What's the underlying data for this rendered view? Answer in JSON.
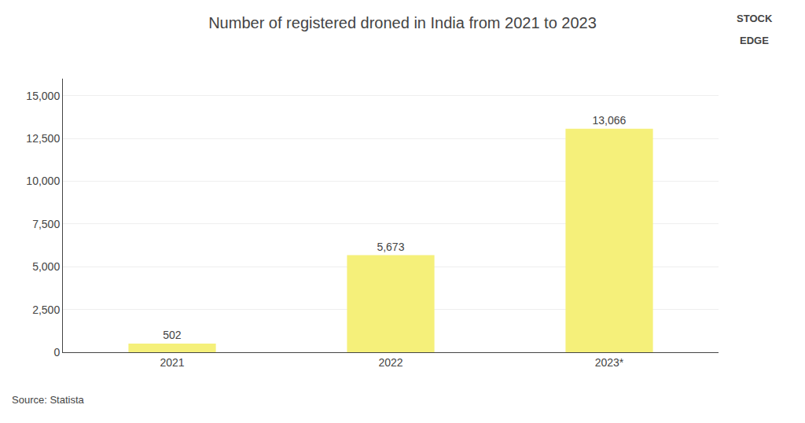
{
  "chart_data": {
    "type": "bar",
    "title": "Number of registered droned in India from 2021 to 2023",
    "categories": [
      "2021",
      "2022",
      "2023*"
    ],
    "values": [
      502,
      5673,
      13066
    ],
    "value_labels": [
      "502",
      "5,673",
      "13,066"
    ],
    "data_labels": true,
    "color": "#F5F07A",
    "ylim": [
      0,
      16000
    ],
    "yticks": [
      0,
      {
        "value": 2500,
        "label": "2,500"
      },
      {
        "value": 5000,
        "label": "5,000"
      },
      {
        "value": 7500,
        "label": "7,500"
      },
      {
        "value": 10000,
        "label": "10,000"
      },
      {
        "value": 12500,
        "label": "12,500"
      },
      {
        "value": 15000,
        "label": "15,000"
      }
    ],
    "grid": true,
    "annotations": [
      "Source: Statista",
      "STOCK",
      "EDGE"
    ]
  }
}
